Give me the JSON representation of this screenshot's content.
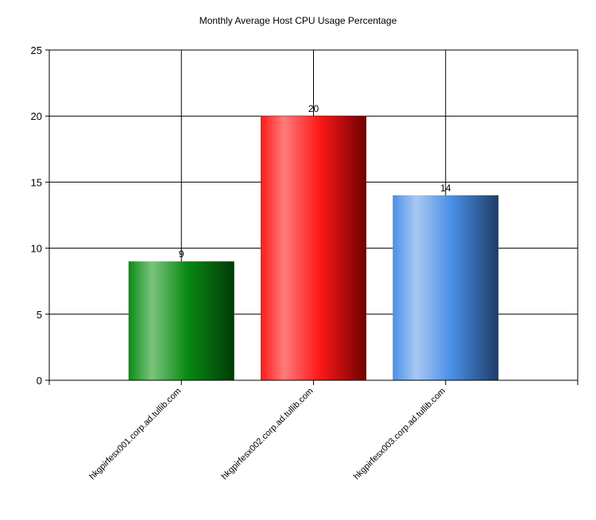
{
  "chart_data": {
    "type": "bar",
    "title": "Monthly Average Host CPU Usage Percentage",
    "xlabel": "",
    "ylabel": "",
    "categories": [
      "hkgpirfesx001.corp.ad.tullib.com",
      "hkgpirfesx002.corp.ad.tullib.com",
      "hkgpirfesx003.corp.ad.tullib.com"
    ],
    "values": [
      9,
      20,
      14
    ],
    "data_labels": [
      "9",
      "20",
      "14"
    ],
    "ylim": [
      0,
      25
    ],
    "yticks": [
      0,
      5,
      10,
      15,
      20,
      25
    ],
    "grid": true,
    "legend": "none",
    "bar_colors": [
      {
        "base": "#0a8a14",
        "light": "#7cc47e",
        "dark": "#003a05"
      },
      {
        "base": "#ff1a1a",
        "light": "#ff7a7a",
        "dark": "#6e0000"
      },
      {
        "base": "#4a90e8",
        "light": "#a8c8f2",
        "dark": "#1f3c66"
      }
    ],
    "gridline_color": "#000000"
  }
}
